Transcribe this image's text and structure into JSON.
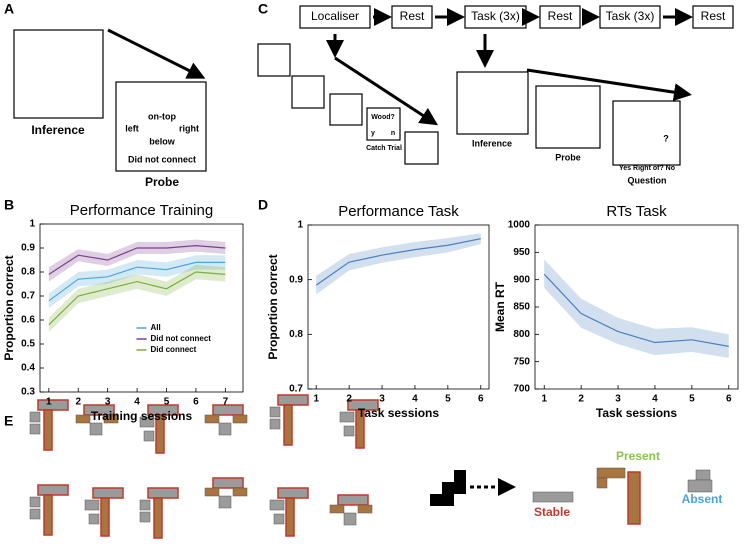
{
  "panel_labels": [
    "A",
    "B",
    "C",
    "D",
    "E"
  ],
  "panel_a": {
    "caption": "Inference",
    "probe_top": "on-top",
    "probe_left": "left",
    "probe_right": "right",
    "probe_bottom": "below",
    "probe_note": "Did not connect",
    "probe_caption": "Probe"
  },
  "panel_c": {
    "timeline": [
      "Localiser",
      "Rest",
      "Task (3x)",
      "Rest",
      "Task (3x)",
      "Rest"
    ],
    "catch_question": "Wood?",
    "catch_yes": "y",
    "catch_no": "n",
    "catch_caption": "Catch Trial",
    "inference_caption": "Inference",
    "probe_caption": "Probe",
    "question_mark": "?",
    "question_text": "Yes Right of? No",
    "question_caption": "Question"
  },
  "panel_e": {
    "stable": "Stable",
    "present": "Present",
    "absent": "Absent"
  },
  "chart_data": [
    {
      "type": "line",
      "title": "Performance Training",
      "xlabel": "Training sessions",
      "ylabel": "Proportion correct",
      "x": [
        1,
        2,
        3,
        4,
        5,
        6,
        7
      ],
      "xlim": [
        0.7,
        7.6
      ],
      "xticks": [
        1,
        2,
        3,
        4,
        5,
        6,
        7
      ],
      "ylim": [
        0.3,
        1
      ],
      "yticks": [
        0.3,
        0.4,
        0.5,
        0.6,
        0.7,
        0.8,
        0.9,
        1
      ],
      "legend": "lower center",
      "series": [
        {
          "name": "All",
          "color": "#4fa7d9",
          "values": [
            0.68,
            0.77,
            0.78,
            0.82,
            0.81,
            0.84,
            0.84
          ],
          "lower": [
            0.65,
            0.74,
            0.75,
            0.79,
            0.78,
            0.81,
            0.81
          ],
          "upper": [
            0.71,
            0.8,
            0.81,
            0.85,
            0.84,
            0.87,
            0.87
          ]
        },
        {
          "name": "Did not connect",
          "color": "#7d3f91",
          "values": [
            0.79,
            0.87,
            0.85,
            0.9,
            0.9,
            0.91,
            0.9
          ],
          "lower": [
            0.76,
            0.845,
            0.825,
            0.875,
            0.875,
            0.885,
            0.875
          ],
          "upper": [
            0.82,
            0.895,
            0.875,
            0.925,
            0.925,
            0.935,
            0.925
          ]
        },
        {
          "name": "Did connect",
          "color": "#7cae3c",
          "values": [
            0.58,
            0.7,
            0.73,
            0.76,
            0.73,
            0.8,
            0.79
          ],
          "lower": [
            0.55,
            0.67,
            0.7,
            0.73,
            0.7,
            0.77,
            0.76
          ],
          "upper": [
            0.61,
            0.73,
            0.76,
            0.79,
            0.76,
            0.83,
            0.82
          ]
        }
      ]
    },
    {
      "type": "line",
      "title": "Performance Task",
      "xlabel": "Task sessions",
      "ylabel": "Proportion correct",
      "x": [
        1,
        2,
        3,
        4,
        5,
        6
      ],
      "xlim": [
        0.75,
        6.25
      ],
      "xticks": [
        1,
        2,
        3,
        4,
        5,
        6
      ],
      "ylim": [
        0.7,
        1
      ],
      "yticks": [
        0.7,
        0.8,
        0.9,
        1
      ],
      "series": [
        {
          "color": "#4a7fc1",
          "values": [
            0.89,
            0.932,
            0.945,
            0.955,
            0.963,
            0.975
          ],
          "lower": [
            0.873,
            0.917,
            0.931,
            0.941,
            0.95,
            0.965
          ],
          "upper": [
            0.907,
            0.947,
            0.959,
            0.969,
            0.976,
            0.985
          ]
        }
      ]
    },
    {
      "type": "line",
      "title": "RTs Task",
      "xlabel": "Task sessions",
      "ylabel": "Mean RT",
      "x": [
        1,
        2,
        3,
        4,
        5,
        6
      ],
      "xlim": [
        0.75,
        6.25
      ],
      "xticks": [
        1,
        2,
        3,
        4,
        5,
        6
      ],
      "ylim": [
        700,
        1000
      ],
      "yticks": [
        700,
        750,
        800,
        850,
        900,
        950,
        1000
      ],
      "series": [
        {
          "color": "#4a7fc1",
          "values": [
            910,
            838,
            805,
            785,
            790,
            778
          ],
          "lower": [
            885,
            812,
            782,
            762,
            768,
            757
          ],
          "upper": [
            937,
            865,
            830,
            810,
            813,
            800
          ]
        }
      ]
    }
  ]
}
